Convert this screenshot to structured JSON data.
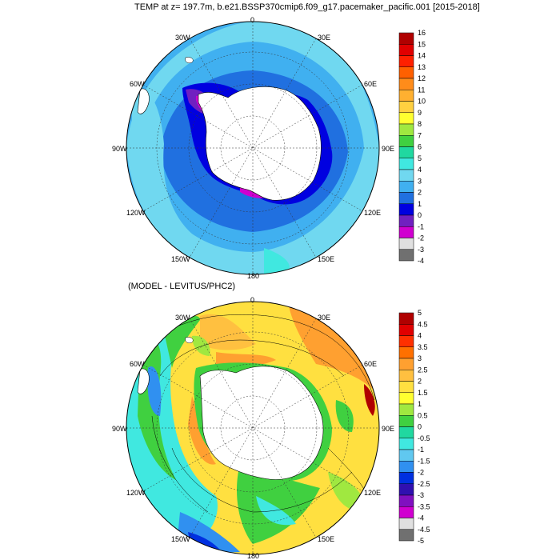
{
  "top_panel": {
    "title": "TEMP at z= 197.7m, b.e21.BSSP370cmip6.f09_g17.pacemaker_pacific.001 [2015-2018]",
    "lon_labels": {
      "deg0": "0",
      "e30": "30E",
      "e60": "60E",
      "e90": "90E",
      "e120": "120E",
      "e150": "150E",
      "deg180": "180",
      "w150": "150W",
      "w120": "120W",
      "w90": "90W",
      "w60": "60W",
      "w30": "30W"
    },
    "colorbar": {
      "labels": [
        "16",
        "15",
        "14",
        "13",
        "12",
        "11",
        "10",
        "9",
        "8",
        "7",
        "6",
        "5",
        "4",
        "3",
        "2",
        "1",
        "0",
        "-1",
        "-2",
        "-3",
        "-4"
      ],
      "colors": [
        "#b00000",
        "#e00000",
        "#ff2000",
        "#ff6000",
        "#ff8c1a",
        "#ffb030",
        "#ffd040",
        "#ffff30",
        "#a0e840",
        "#40d040",
        "#20d8a0",
        "#40e8e0",
        "#70d8f0",
        "#40b0f0",
        "#2070e0",
        "#0000e0",
        "#7020c0",
        "#d000d0",
        "#e0e0e0",
        "#707070"
      ]
    }
  },
  "bottom_panel": {
    "title": "(MODEL - LEVITUS/PHC2)",
    "lon_labels": {
      "deg0": "0",
      "e30": "30E",
      "e60": "60E",
      "e90": "90E",
      "e120": "120E",
      "e150": "150E",
      "deg180": "180",
      "w150": "150W",
      "w120": "120W",
      "w90": "90W",
      "w60": "60W",
      "w30": "30W"
    },
    "colorbar": {
      "labels": [
        "5",
        "4.5",
        "4",
        "3.5",
        "3",
        "2.5",
        "2",
        "1.5",
        "1",
        "0.5",
        "0",
        "-0.5",
        "-1",
        "-1.5",
        "-2",
        "-2.5",
        "-3",
        "-3.5",
        "-4",
        "-4.5",
        "-5"
      ],
      "colors": [
        "#b00000",
        "#e00000",
        "#ff3000",
        "#ff7000",
        "#ffa030",
        "#ffc040",
        "#ffe040",
        "#ffff30",
        "#a0e840",
        "#40d040",
        "#20d8a0",
        "#40e8e0",
        "#60c8f0",
        "#3090f0",
        "#0030e0",
        "#3010b0",
        "#8010c0",
        "#d000d0",
        "#e0e0e0",
        "#707070"
      ]
    }
  }
}
